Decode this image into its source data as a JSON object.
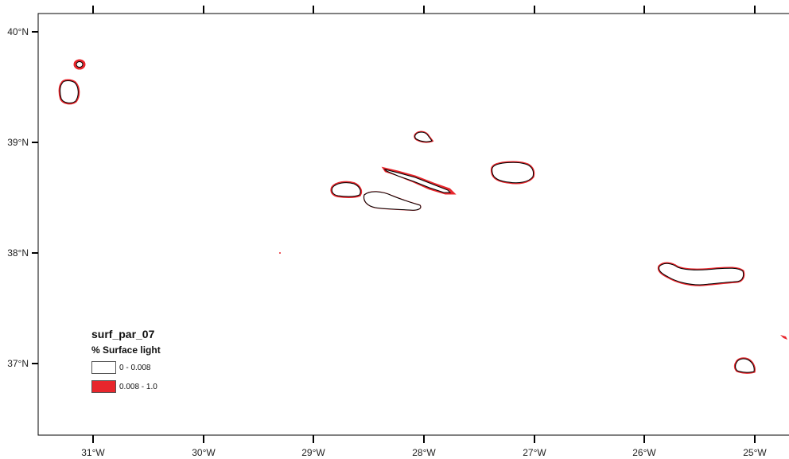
{
  "map": {
    "colors": {
      "frame": "#000000",
      "coast": "#000000",
      "low_class": "#ffffff",
      "high_class": "#e8262c"
    },
    "lon_ticks": [
      "31°W",
      "30°W",
      "29°W",
      "28°W",
      "27°W",
      "26°W",
      "25°W"
    ],
    "lat_ticks": [
      "40°N",
      "39°N",
      "38°N",
      "37°N"
    ],
    "islands": [
      "flores",
      "corvo",
      "faial",
      "pico",
      "sao-jorge",
      "graciosa",
      "terceira",
      "sao-miguel",
      "santa-maria"
    ]
  },
  "legend": {
    "title": "surf_par_07",
    "subtitle": "% Surface light",
    "classes": [
      {
        "label": "0 - 0.008",
        "color": "#ffffff"
      },
      {
        "label": "0.008 - 1.0",
        "color": "#e8262c"
      }
    ]
  }
}
